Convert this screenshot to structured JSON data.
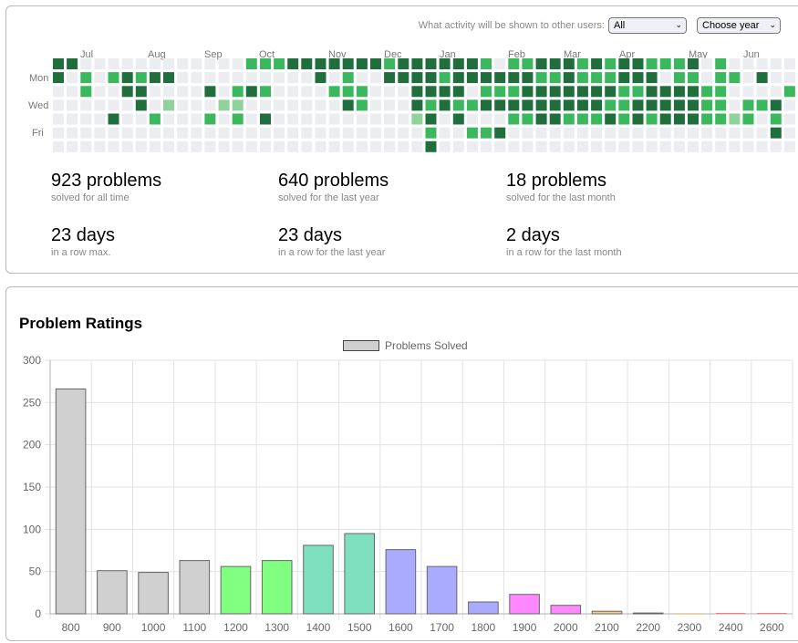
{
  "activity": {
    "visibility_label": "What activity will be shown to other users:",
    "visibility_value": "All",
    "year_select_label": "Choose year",
    "months": [
      "Jul",
      "Aug",
      "Sep",
      "Oct",
      "Nov",
      "Dec",
      "Jan",
      "Feb",
      "Mar",
      "Apr",
      "May",
      "Jun"
    ],
    "days": [
      "Mon",
      "Wed",
      "Fri"
    ],
    "level_colors": [
      "#ebedf0",
      "#8fd39a",
      "#3bb85e",
      "#1f6e3c"
    ],
    "grid": [
      "33000000000000222333333323333332022333232332223020000000000000",
      "30202323300000000003020033332333333223222333022022030000000022",
      "00200330000302320000222000333302223333333223333220000200000220",
      "00000030100011000000032000323223333333332233333220223000000030",
      "00003002000202030000000000130300022332223232333221202013000300",
      "00000000000000000000000000020022300000000000000000003000000000",
      "00000000000000000000000000030000000000000000000000000000000000"
    ],
    "stats": [
      {
        "value": "923 problems",
        "desc": "solved for all time"
      },
      {
        "value": "640 problems",
        "desc": "solved for the last year"
      },
      {
        "value": "18 problems",
        "desc": "solved for the last month"
      },
      {
        "value": "23 days",
        "desc": "in a row max."
      },
      {
        "value": "23 days",
        "desc": "in a row for the last year"
      },
      {
        "value": "2 days",
        "desc": "in a row for the last month"
      }
    ]
  },
  "ratings": {
    "title": "Problem Ratings",
    "chart_data": {
      "type": "bar",
      "title": "Problem Ratings",
      "categories": [
        "800",
        "900",
        "1000",
        "1100",
        "1200",
        "1300",
        "1400",
        "1500",
        "1600",
        "1700",
        "1800",
        "1900",
        "2000",
        "2100",
        "2200",
        "2300",
        "2400",
        "2600"
      ],
      "series": [
        {
          "name": "Problems Solved",
          "values": [
            266,
            51,
            49,
            63,
            56,
            63,
            81,
            95,
            76,
            56,
            14,
            23,
            10,
            3,
            1,
            0,
            0,
            0
          ]
        }
      ],
      "bar_colors": [
        "#d0d0d0",
        "#d0d0d0",
        "#d0d0d0",
        "#d0d0d0",
        "#80ff80",
        "#80ff80",
        "#7fe0bf",
        "#7fe0bf",
        "#aaaaff",
        "#aaaaff",
        "#aaaaff",
        "#ff88ff",
        "#ff88ff",
        "#ffcc88",
        "#ffcc88",
        "#ffcc88",
        "#ff7777",
        "#ff7777"
      ],
      "ylim": [
        0,
        300
      ],
      "yticks": [
        "0",
        "50",
        "100",
        "150",
        "200",
        "250",
        "300"
      ],
      "grid": true,
      "legend": "top-center"
    }
  }
}
